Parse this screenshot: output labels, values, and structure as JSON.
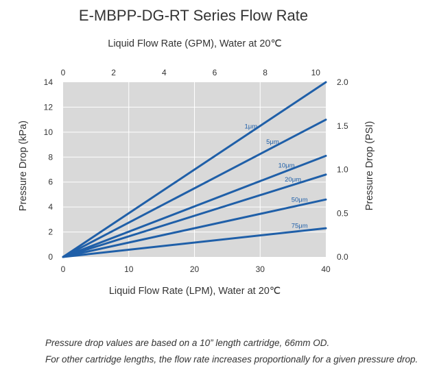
{
  "chart_data": {
    "type": "line",
    "title": "E-MBPP-DG-RT Series Flow Rate",
    "xlabel_bottom": "Liquid Flow Rate (LPM), Water at 20℃",
    "xlabel_top": "Liquid Flow Rate (GPM), Water at 20℃",
    "ylabel_left": "Pressure Drop (kPa)",
    "ylabel_right": "Pressure Drop (PSI)",
    "x_bottom_lim": [
      0,
      40
    ],
    "x_bottom_ticks": [
      "0",
      "10",
      "20",
      "30",
      "40"
    ],
    "x_top_lim": [
      0,
      10.4
    ],
    "x_top_ticks": [
      "0",
      "2",
      "4",
      "6",
      "8",
      "10"
    ],
    "y_left_lim": [
      0,
      14
    ],
    "y_left_ticks": [
      "0",
      "2",
      "4",
      "6",
      "8",
      "10",
      "12",
      "14"
    ],
    "y_right_lim": [
      0,
      2.0
    ],
    "y_right_ticks": [
      "0.0",
      "0.5",
      "1.0",
      "1.5",
      "2.0"
    ],
    "grid": true,
    "series": [
      {
        "name": "1μm",
        "x": [
          0,
          40
        ],
        "y": [
          0,
          14.0
        ],
        "label_x": 28.6
      },
      {
        "name": "5μm",
        "x": [
          0,
          40
        ],
        "y": [
          0,
          11.0
        ],
        "label_x": 31.9
      },
      {
        "name": "10μm",
        "x": [
          0,
          40
        ],
        "y": [
          0,
          8.1
        ],
        "label_x": 34.0
      },
      {
        "name": "20μm",
        "x": [
          0,
          40
        ],
        "y": [
          0,
          6.6
        ],
        "label_x": 35.0
      },
      {
        "name": "50μm",
        "x": [
          0,
          40
        ],
        "y": [
          0,
          4.6
        ],
        "label_x": 36.0
      },
      {
        "name": "75μm",
        "x": [
          0,
          40
        ],
        "y": [
          0,
          2.3
        ],
        "label_x": 36.0
      }
    ]
  },
  "colors": {
    "plot_background": "#d9d9d9",
    "gridline": "#ffffff",
    "line": "#1f5fa8",
    "series_label": "#1f5fa8",
    "text": "#333333"
  },
  "notes": [
    "Pressure drop values are based on a 10” length cartridge, 66mm OD.",
    "For other cartridge lengths, the flow rate increases proportionally for a given pressure drop."
  ]
}
